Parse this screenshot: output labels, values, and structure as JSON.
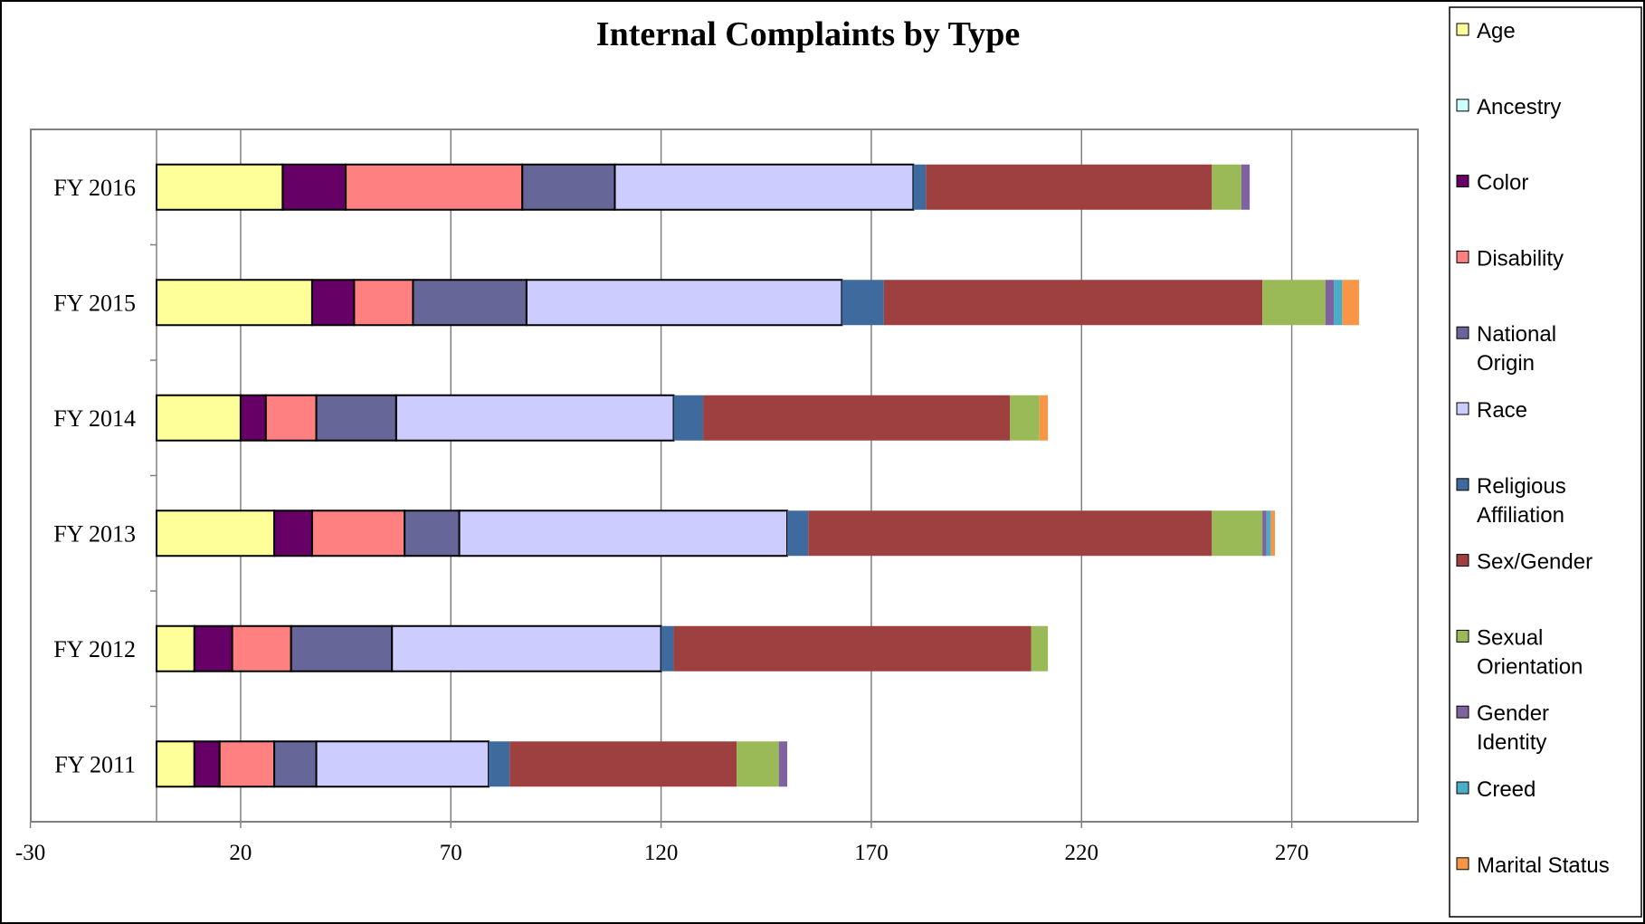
{
  "chart_data": {
    "type": "bar",
    "orientation": "horizontal",
    "stacked": true,
    "title": "Internal Complaints by Type",
    "categories": [
      "FY 2011",
      "FY 2012",
      "FY 2013",
      "FY 2014",
      "FY 2015",
      "FY 2016"
    ],
    "x_ticks": [
      -30,
      20,
      70,
      120,
      170,
      220,
      270
    ],
    "xlim": [
      -30,
      300
    ],
    "grid": "vertical",
    "legend_position": "right",
    "series": [
      {
        "name": "Age",
        "color": "#FFFF99",
        "values": [
          9,
          9,
          28,
          20,
          37,
          30
        ]
      },
      {
        "name": "Ancestry",
        "color": "#CCFFFF",
        "values": [
          0,
          0,
          0,
          0,
          0,
          0
        ]
      },
      {
        "name": "Color",
        "color": "#660066",
        "values": [
          6,
          9,
          9,
          6,
          10,
          15
        ]
      },
      {
        "name": "Disability",
        "color": "#FF8080",
        "values": [
          13,
          14,
          22,
          12,
          14,
          42
        ]
      },
      {
        "name": "National\nOrigin",
        "color": "#666699",
        "values": [
          10,
          24,
          13,
          19,
          27,
          22
        ]
      },
      {
        "name": "Race",
        "color": "#CCCCFF",
        "values": [
          41,
          64,
          78,
          66,
          75,
          71
        ]
      },
      {
        "name": "Religious\nAffiliation",
        "color": "#3F6A9E",
        "values": [
          5,
          3,
          5,
          7,
          10,
          3
        ]
      },
      {
        "name": "Sex/Gender",
        "color": "#9E403F",
        "values": [
          54,
          85,
          96,
          73,
          90,
          68
        ]
      },
      {
        "name": "Sexual\nOrientation",
        "color": "#9ABA58",
        "values": [
          10,
          4,
          12,
          7,
          15,
          7
        ]
      },
      {
        "name": "Gender\nIdentity",
        "color": "#7F63A1",
        "values": [
          2,
          0,
          1,
          0,
          2,
          2
        ]
      },
      {
        "name": "Creed",
        "color": "#4BACC6",
        "values": [
          0,
          0,
          1,
          0,
          2,
          0
        ]
      },
      {
        "name": "Marital Status",
        "color": "#F79646",
        "values": [
          0,
          0,
          1,
          2,
          4,
          0
        ]
      }
    ]
  }
}
